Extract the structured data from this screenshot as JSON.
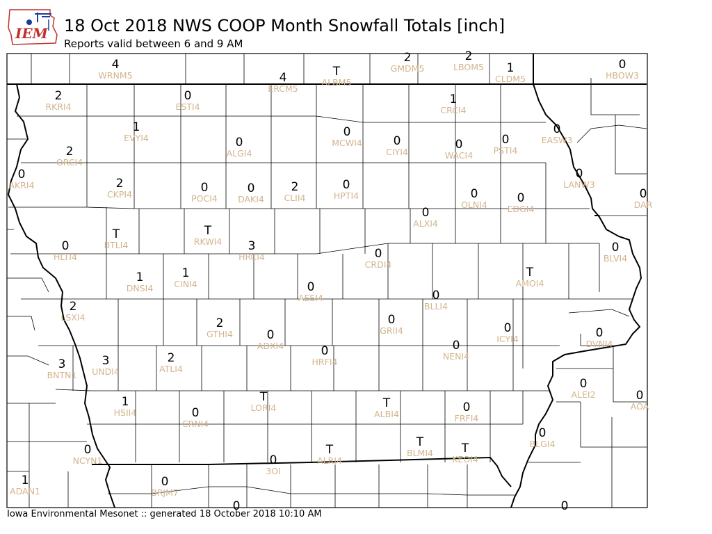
{
  "logo": {
    "text": "IEM"
  },
  "header": {
    "title": "18 Oct 2018 NWS COOP Month Snowfall Totals [inch]",
    "subtitle": "Reports valid between 6 and 9 AM"
  },
  "footer": {
    "text": "Iowa Environmental Mesonet :: generated 18 October 2018 10:10 AM"
  },
  "colors": {
    "value_text": "#000000",
    "station_text": "#d2b48c",
    "county_line": "#000000",
    "state_line": "#000000"
  },
  "stations": [
    {
      "id": "WRNM5",
      "value": "4"
    },
    {
      "id": "ERCM5",
      "value": "4"
    },
    {
      "id": "ALBM5",
      "value": "T"
    },
    {
      "id": "GMDM5",
      "value": "2"
    },
    {
      "id": "LBOM5",
      "value": "2"
    },
    {
      "id": "CLDM5",
      "value": "1"
    },
    {
      "id": "HBOW3",
      "value": "0"
    },
    {
      "id": "RKRI4",
      "value": "2"
    },
    {
      "id": "ESTI4",
      "value": "0"
    },
    {
      "id": "CRCI4",
      "value": "1"
    },
    {
      "id": "EVYI4",
      "value": "1"
    },
    {
      "id": "ALGI4",
      "value": "0"
    },
    {
      "id": "MCWI4",
      "value": "0"
    },
    {
      "id": "CIYI4",
      "value": "0"
    },
    {
      "id": "WACI4",
      "value": "0"
    },
    {
      "id": "PSTI4",
      "value": "0"
    },
    {
      "id": "EASW3",
      "value": "0"
    },
    {
      "id": "ORCI4",
      "value": "2"
    },
    {
      "id": "AKRI4",
      "value": "0"
    },
    {
      "id": "CKPI4",
      "value": "2"
    },
    {
      "id": "POCI4",
      "value": "0"
    },
    {
      "id": "DAKI4",
      "value": "0"
    },
    {
      "id": "CLII4",
      "value": "2"
    },
    {
      "id": "HPTI4",
      "value": "0"
    },
    {
      "id": "OLNI4",
      "value": "0"
    },
    {
      "id": "EDGI4",
      "value": "0"
    },
    {
      "id": "LANW3",
      "value": "0"
    },
    {
      "id": "DAR",
      "value": "0"
    },
    {
      "id": "ALXI4",
      "value": "0"
    },
    {
      "id": "BTLI4",
      "value": "T"
    },
    {
      "id": "RKWI4",
      "value": "T"
    },
    {
      "id": "HLTI4",
      "value": "0"
    },
    {
      "id": "HRCI4",
      "value": "3"
    },
    {
      "id": "CRDI4",
      "value": "0"
    },
    {
      "id": "BLVI4",
      "value": "0"
    },
    {
      "id": "AMOI4",
      "value": "T"
    },
    {
      "id": "DNSI4",
      "value": "1"
    },
    {
      "id": "CINI4",
      "value": "1"
    },
    {
      "id": "AESI4",
      "value": "0"
    },
    {
      "id": "BLLI4",
      "value": "0"
    },
    {
      "id": "LSXI4",
      "value": "2"
    },
    {
      "id": "GTHI4",
      "value": "2"
    },
    {
      "id": "ADXI4",
      "value": "0"
    },
    {
      "id": "GRII4",
      "value": "0"
    },
    {
      "id": "ICYI4",
      "value": "0"
    },
    {
      "id": "DVNI4",
      "value": "0"
    },
    {
      "id": "HRFI4",
      "value": "0"
    },
    {
      "id": "NENI4",
      "value": "0"
    },
    {
      "id": "BNTN1",
      "value": "3"
    },
    {
      "id": "UNDI4",
      "value": "3"
    },
    {
      "id": "ATLI4",
      "value": "2"
    },
    {
      "id": "ALEI2",
      "value": "0"
    },
    {
      "id": "AOA",
      "value": "0"
    },
    {
      "id": "LORI4",
      "value": "T"
    },
    {
      "id": "ALBI4",
      "value": "T"
    },
    {
      "id": "HSII4",
      "value": "1"
    },
    {
      "id": "CRNI4",
      "value": "0"
    },
    {
      "id": "FRFI4",
      "value": "0"
    },
    {
      "id": "BLGI4",
      "value": "0"
    },
    {
      "id": "NCYN1",
      "value": "0"
    },
    {
      "id": "ALRI4",
      "value": "T"
    },
    {
      "id": "BLMI4",
      "value": "T"
    },
    {
      "id": "KEOI4",
      "value": "T"
    },
    {
      "id": "3OI",
      "value": "0"
    },
    {
      "id": "ADAN1",
      "value": "1"
    },
    {
      "id": "BRJM7",
      "value": "0"
    },
    {
      "id": "",
      "value": "0"
    },
    {
      "id": "",
      "value": "0"
    }
  ]
}
